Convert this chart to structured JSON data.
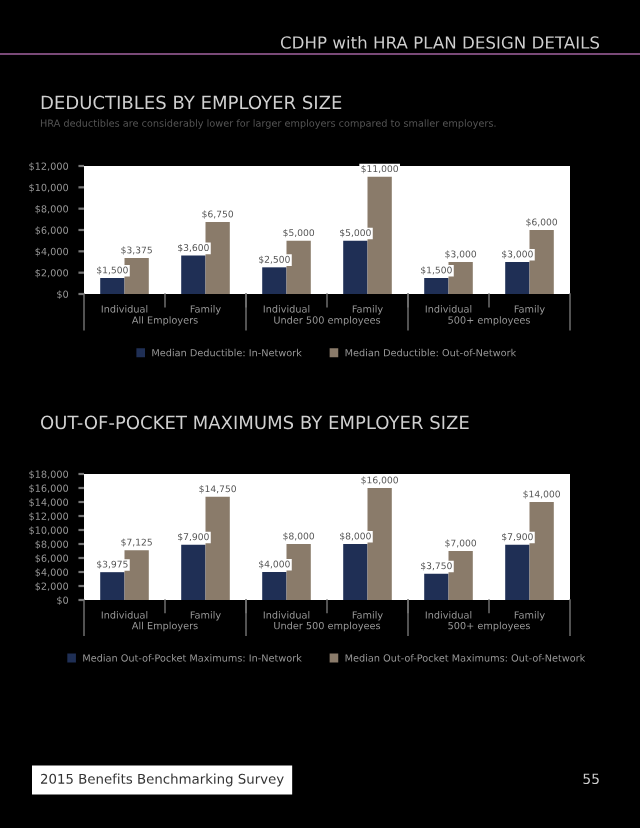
{
  "chart_data": [
    {
      "type": "bar",
      "title": "DEDUCTIBLES BY EMPLOYER SIZE",
      "subtitle": "HRA deductibles are considerably lower for larger employers compared to smaller employers.",
      "categories": [
        "Individual",
        "Family",
        "Individual",
        "Family",
        "Individual",
        "Family"
      ],
      "series": [
        {
          "name": "Median Deductible: In-Network",
          "color": "#1f2f55",
          "values": [
            1500,
            3600,
            2500,
            5000,
            1500,
            3000
          ],
          "value_labels": [
            "$1,500",
            "$3,600",
            "$2,500",
            "$5,000",
            "$1,500",
            "$3,000"
          ]
        },
        {
          "name": "Median Deductible: Out-of-Network",
          "color": "#8a7b6a",
          "values": [
            3375,
            6750,
            5000,
            11000,
            3000,
            6000
          ],
          "value_labels": [
            "$3,375",
            "$6,750",
            "$5,000",
            "$11,000",
            "$3,000",
            "$6,000"
          ]
        }
      ],
      "ylim": [
        0,
        12000
      ],
      "yticks": [
        {
          "value": 0,
          "label": "$0"
        },
        {
          "value": 2000,
          "label": "$2,000"
        },
        {
          "value": 4000,
          "label": "$4,000"
        },
        {
          "value": 6000,
          "label": "$6,000"
        },
        {
          "value": 8000,
          "label": "$8,000"
        },
        {
          "value": 10000,
          "label": "$10,000"
        },
        {
          "value": 12000,
          "label": "$12,000"
        }
      ],
      "legend": "bottom",
      "grid": false,
      "annotations": [
        "All Employers",
        "Under 500 employees",
        "500+ employees",
        "CDHP with HRA PLAN DESIGN DETAILS"
      ]
    },
    {
      "type": "bar",
      "title": "OUT-OF-POCKET MAXIMUMS BY EMPLOYER SIZE",
      "categories": [
        "Individual",
        "Family",
        "Individual",
        "Family",
        "Individual",
        "Family"
      ],
      "series": [
        {
          "name": "Median Out-of-Pocket Maximums: In-Network",
          "color": "#1f2f55",
          "values": [
            3975,
            7900,
            4000,
            8000,
            3750,
            7900
          ],
          "value_labels": [
            "$3,975",
            "$7,900",
            "$4,000",
            "$8,000",
            "$3,750",
            "$7,900"
          ]
        },
        {
          "name": "Median Out-of-Pocket Maximums: Out-of-Network",
          "color": "#8a7b6a",
          "values": [
            7125,
            14750,
            8000,
            16000,
            7000,
            14000
          ],
          "value_labels": [
            "$7,125",
            "$14,750",
            "$8,000",
            "$16,000",
            "$7,000",
            "$14,000"
          ]
        }
      ],
      "ylim": [
        0,
        18000
      ],
      "yticks": [
        {
          "value": 0,
          "label": "$0"
        },
        {
          "value": 2000,
          "label": "$2,000"
        },
        {
          "value": 4000,
          "label": "$4,000"
        },
        {
          "value": 6000,
          "label": "$6,000"
        },
        {
          "value": 8000,
          "label": "$8,000"
        },
        {
          "value": 10000,
          "label": "$10,000"
        },
        {
          "value": 12000,
          "label": "$12,000"
        },
        {
          "value": 14000,
          "label": "$14,000"
        },
        {
          "value": 16000,
          "label": "$16,000"
        },
        {
          "value": 18000,
          "label": "$18,000"
        }
      ],
      "legend": "bottom",
      "grid": false,
      "annotations": [
        "All Employers",
        "Under 500 employees",
        "500+ employees",
        "2015 Benefits Benchmarking Survey",
        "55"
      ]
    }
  ]
}
